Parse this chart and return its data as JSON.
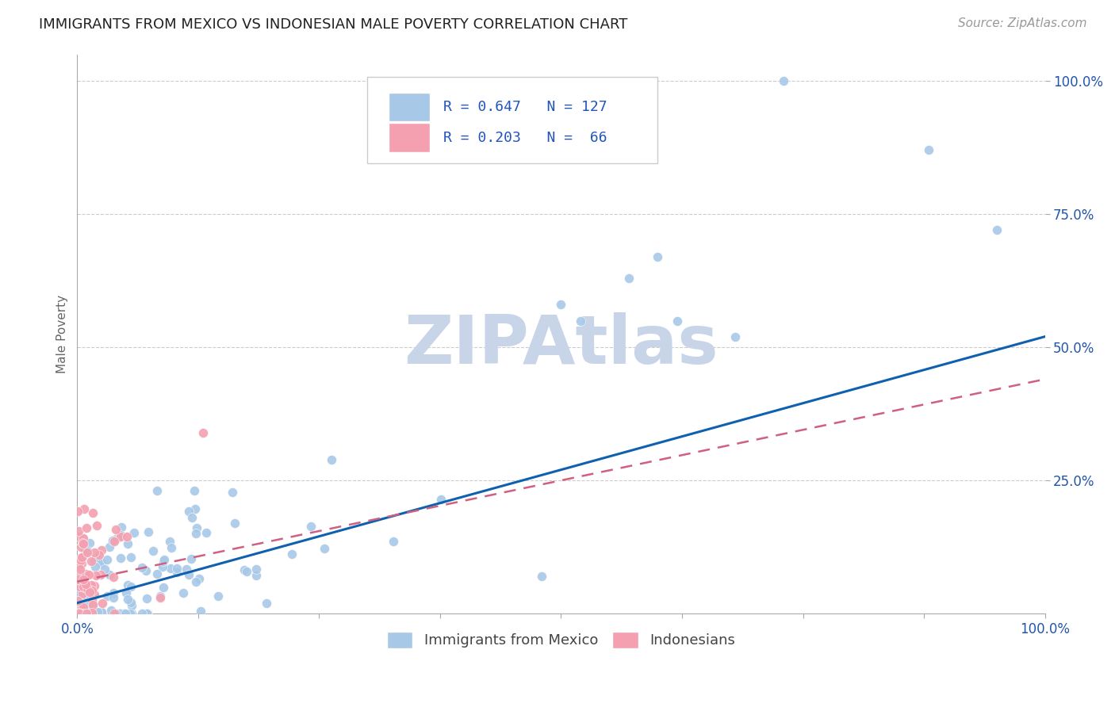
{
  "title": "IMMIGRANTS FROM MEXICO VS INDONESIAN MALE POVERTY CORRELATION CHART",
  "source": "Source: ZipAtlas.com",
  "ylabel": "Male Poverty",
  "legend1_R": "0.647",
  "legend1_N": "127",
  "legend2_R": "0.203",
  "legend2_N": "66",
  "blue_color": "#a8c8e8",
  "pink_color": "#f4a0b0",
  "line_blue": "#1060b0",
  "line_pink": "#d06080",
  "watermark": "ZIPAtlas",
  "watermark_color": "#c8d4e8",
  "background": "#ffffff",
  "blue_slope": 0.5,
  "blue_intercept": 0.02,
  "pink_slope": 0.38,
  "pink_intercept": 0.06,
  "title_fontsize": 13,
  "source_fontsize": 11,
  "tick_fontsize": 12,
  "ylabel_fontsize": 11
}
